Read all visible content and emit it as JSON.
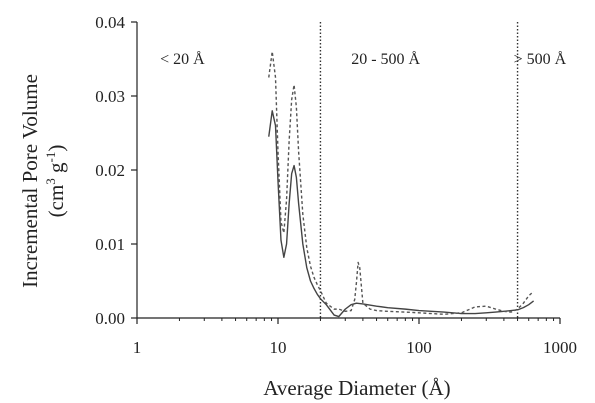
{
  "chart_data": {
    "type": "line",
    "title": "",
    "xlabel": "Average Diameter (Å)",
    "ylabel_line1": "Incremental Pore Volume",
    "ylabel_line2_parts": {
      "open": "(cm",
      "sup1": "3",
      "mid": " g",
      "sup2": "-1",
      "close": ")"
    },
    "x_scale": "log",
    "xlim": [
      1,
      1000
    ],
    "ylim": [
      0,
      0.04
    ],
    "x_ticks": [
      1,
      10,
      100,
      1000
    ],
    "x_tick_labels": [
      "1",
      "10",
      "100",
      "1000"
    ],
    "y_ticks": [
      0,
      0.01,
      0.02,
      0.03,
      0.04
    ],
    "y_tick_labels": [
      "0.00",
      "0.01",
      "0.02",
      "0.03",
      "0.04"
    ],
    "grid": false,
    "boundaries": [
      20,
      500
    ],
    "regions": [
      {
        "label": "< 20 Å",
        "x": 2.1
      },
      {
        "label": "20 - 500 Å",
        "x": 58
      },
      {
        "label": "> 500 Å",
        "x": 720
      }
    ],
    "series": [
      {
        "style": "solid",
        "color": "#444444",
        "x": [
          8.6,
          9.1,
          9.6,
          10.0,
          10.5,
          11.0,
          11.5,
          12.0,
          12.5,
          13.0,
          13.5,
          14,
          15,
          16,
          17,
          18,
          19,
          20,
          22,
          25,
          27,
          30,
          33,
          36,
          40,
          50,
          60,
          80,
          100,
          150,
          200,
          250,
          300,
          350,
          400,
          450,
          500,
          550,
          600,
          650
        ],
        "y": [
          0.0245,
          0.028,
          0.026,
          0.0185,
          0.0105,
          0.0082,
          0.01,
          0.0155,
          0.0195,
          0.0206,
          0.019,
          0.0155,
          0.01,
          0.0068,
          0.005,
          0.004,
          0.0032,
          0.0026,
          0.0018,
          0.0004,
          0.0002,
          0.0012,
          0.0018,
          0.002,
          0.0019,
          0.0016,
          0.0014,
          0.0012,
          0.001,
          0.0008,
          0.0006,
          0.0006,
          0.0007,
          0.0008,
          0.0009,
          0.001,
          0.0011,
          0.0014,
          0.0018,
          0.0023
        ]
      },
      {
        "style": "dashed",
        "color": "#555555",
        "x": [
          8.6,
          9.1,
          9.6,
          10.0,
          10.5,
          11.0,
          11.5,
          12.0,
          12.5,
          13.0,
          13.5,
          14,
          15,
          16,
          17,
          18,
          19,
          20,
          22,
          25,
          27,
          30,
          33,
          35,
          36,
          37,
          38,
          40,
          45,
          50,
          60,
          80,
          100,
          150,
          200,
          250,
          300,
          350,
          400,
          450,
          500,
          550,
          600,
          650
        ],
        "y": [
          0.0325,
          0.036,
          0.0325,
          0.0225,
          0.013,
          0.0115,
          0.016,
          0.024,
          0.0295,
          0.0315,
          0.0285,
          0.0225,
          0.014,
          0.0095,
          0.007,
          0.0055,
          0.0045,
          0.0037,
          0.002,
          0.0012,
          0.0012,
          0.0009,
          0.001,
          0.0025,
          0.0048,
          0.0075,
          0.0068,
          0.002,
          0.0012,
          0.001,
          0.0009,
          0.0008,
          0.0007,
          0.0005,
          0.0007,
          0.0015,
          0.0016,
          0.0012,
          0.0009,
          0.0008,
          0.0012,
          0.002,
          0.003,
          0.0036
        ]
      }
    ]
  }
}
